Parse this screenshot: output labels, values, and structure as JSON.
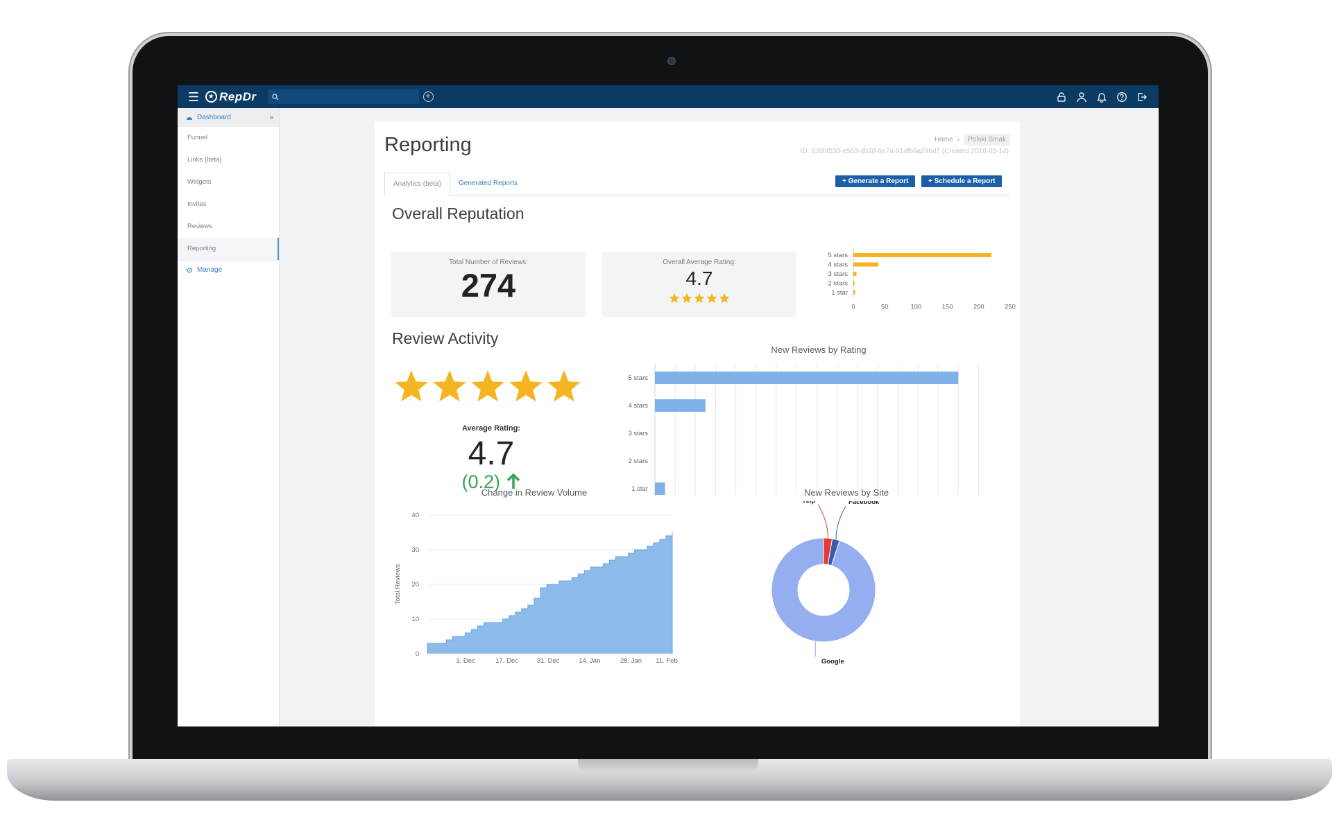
{
  "app": {
    "logo": "RepDr"
  },
  "topbar": {
    "search_placeholder": "",
    "icons": [
      "menu-icon",
      "search-icon",
      "add-circle-icon",
      "unlock-icon",
      "user-icon",
      "bell-icon",
      "help-icon",
      "logout-icon"
    ]
  },
  "sidebar": {
    "header": "Dashboard",
    "items": [
      "Funnel",
      "Links (beta)",
      "Widgets",
      "Invites",
      "Reviews",
      "Reporting"
    ],
    "manage": "Manage"
  },
  "page": {
    "title": "Reporting",
    "breadcrumb": [
      "Home",
      "Polski Smak"
    ],
    "id_line": "ID: 626f4530-e563-4b28-8e7a-914fb9a29bd7 (Created 2018-03-14)",
    "tabs": [
      "Analytics (beta)",
      "Generated Reports"
    ],
    "buttons": {
      "generate": "+ Generate a Report",
      "schedule": "+ Schedule a Report"
    }
  },
  "overall": {
    "title": "Overall Reputation",
    "total_label": "Total Number of Reviews:",
    "total_value": "274",
    "avg_label": "Overall Average Rating:",
    "avg_value": "4.7",
    "avg_stars": 5
  },
  "activity": {
    "title": "Review Activity",
    "avg_label": "Average Rating:",
    "avg_value": "4.7",
    "change": "(0.2)",
    "stars": 5
  },
  "colors": {
    "accent": "#1a5fa8",
    "nav": "#0b3a63",
    "gold": "#f5b523",
    "bar_blue": "#7fb0e8",
    "green": "#3aa25a",
    "area": "#8dbbe9",
    "donut": "#94aef0",
    "yelp": "#e53935",
    "facebook": "#3b5ba8"
  },
  "chart_data": [
    {
      "type": "bar",
      "orientation": "horizontal",
      "categories": [
        "5 stars",
        "4 stars",
        "3 stars",
        "2 stars",
        "1 star"
      ],
      "values": [
        220,
        40,
        5,
        2,
        3
      ],
      "xlim": [
        0,
        250
      ],
      "xticks": [
        0,
        50,
        100,
        150,
        200,
        250
      ]
    },
    {
      "type": "bar",
      "orientation": "horizontal",
      "title": "New Reviews by Rating",
      "categories": [
        "5 stars",
        "4 stars",
        "3 stars",
        "2 stars",
        "1 star"
      ],
      "values": [
        30,
        5,
        0,
        0,
        1
      ],
      "xlim": [
        0,
        33
      ],
      "grid": true
    },
    {
      "type": "area",
      "title": "Change in Review Volume",
      "ylabel": "Total Reviews",
      "ylim": [
        0,
        40
      ],
      "yticks": [
        0,
        10,
        20,
        30,
        40
      ],
      "xtick_labels": [
        "3. Dec",
        "17. Dec",
        "31. Dec",
        "14. Jan",
        "28. Jan",
        "11. Feb"
      ],
      "values": [
        3,
        3,
        3,
        4,
        5,
        5,
        6,
        7,
        8,
        9,
        9,
        9,
        10,
        11,
        12,
        13,
        14,
        16,
        19,
        20,
        20,
        21,
        21,
        22,
        23,
        24,
        25,
        25,
        26,
        27,
        28,
        28,
        29,
        30,
        30,
        31,
        32,
        33,
        34,
        35
      ]
    },
    {
      "type": "pie",
      "style": "donut",
      "title": "New Reviews by Site",
      "labels": [
        "Google",
        "Yelp",
        "Facebook"
      ],
      "values": [
        95,
        2.7,
        2.3
      ]
    }
  ]
}
